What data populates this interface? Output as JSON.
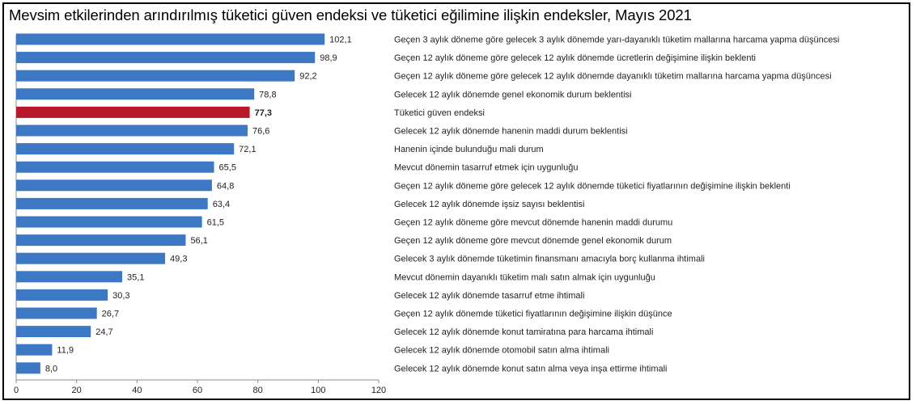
{
  "title": "Mevsim etkilerinden arındırılmış tüketici güven endeksi ve tüketici eğilimine ilişkin endeksler, Mayıs 2021",
  "colors": {
    "bar": "#3d78c4",
    "bar_highlight": "#b8182a",
    "axis": "#8c8c8c"
  },
  "chart_data": {
    "type": "bar",
    "orientation": "horizontal",
    "title": "Mevsim etkilerinden arındırılmış tüketici güven endeksi ve tüketici eğilimine ilişkin endeksler, Mayıs 2021",
    "xlim": [
      0,
      120
    ],
    "xticks": [
      0,
      20,
      40,
      60,
      80,
      100,
      120
    ],
    "grid": false,
    "highlight_index": 4,
    "categories": [
      "Geçen 3 aylık döneme göre gelecek 3 aylık dönemde yarı-dayanıklı tüketim mallarına harcama yapma düşüncesi",
      "Geçen 12 aylık döneme göre gelecek 12 aylık dönemde ücretlerin değişimine ilişkin beklenti",
      "Geçen 12 aylık döneme göre gelecek 12 aylık dönemde  dayanıklı tüketim mallarına harcama yapma düşüncesi",
      "Gelecek 12 aylık dönemde genel ekonomik durum beklentisi",
      "Tüketici güven endeksi",
      "Gelecek 12 aylık dönemde hanenin maddi durum beklentisi",
      "Hanenin içinde bulunduğu mali durum",
      "Mevcut dönemin tasarruf etmek için uygunluğu",
      "Geçen 12 aylık döneme göre gelecek 12 aylık dönemde tüketici fiyatlarının değişimine ilişkin beklenti",
      "Gelecek 12 aylık dönemde işsiz sayısı beklentisi",
      "Geçen 12 aylık döneme göre mevcut dönemde hanenin maddi durumu",
      "Geçen 12 aylık döneme göre mevcut dönemde genel ekonomik durum",
      "Gelecek 3 aylık dönemde tüketimin finansmanı amacıyla borç kullanma ihtimali",
      "Mevcut dönemin dayanıklı tüketim malı satın almak için uygunluğu",
      "Gelecek 12 aylık dönemde tasarruf etme ihtimali",
      "Geçen 12 aylık dönemde tüketici fiyatlarının değişimine ilişkin düşünce",
      "Gelecek 12 aylık dönemde konut tamiratına para harcama ihtimali",
      "Gelecek 12 aylık dönemde otomobil satın alma ihtimali",
      "Gelecek 12 aylık dönemde konut satın alma veya inşa ettirme ihtimali"
    ],
    "values": [
      102.1,
      98.9,
      92.2,
      78.8,
      77.3,
      76.6,
      72.1,
      65.5,
      64.8,
      63.4,
      61.5,
      56.1,
      49.3,
      35.1,
      30.3,
      26.7,
      24.7,
      11.9,
      8.0
    ],
    "value_labels": [
      "102,1",
      "98,9",
      "92,2",
      "78,8",
      "77,3",
      "76,6",
      "72,1",
      "65,5",
      "64,8",
      "63,4",
      "61,5",
      "56,1",
      "49,3",
      "35,1",
      "30,3",
      "26,7",
      "24,7",
      "11,9",
      "8,0"
    ]
  }
}
